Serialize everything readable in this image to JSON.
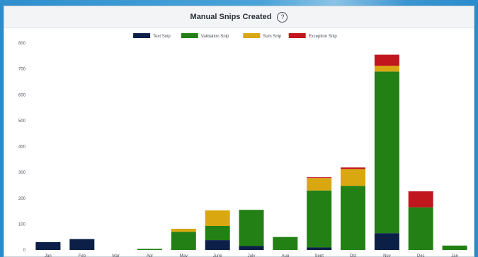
{
  "header": {
    "title": "Manual Snips Created",
    "help_glyph": "?"
  },
  "chart_data": {
    "type": "bar",
    "stacked": true,
    "categories": [
      "Jan",
      "Feb",
      "Mar",
      "Apr",
      "May",
      "June",
      "July",
      "Aug",
      "Sept",
      "Oct",
      "Nov",
      "Dec",
      "Jan"
    ],
    "series": [
      {
        "name": "Text Snip",
        "color": "#0b1f47",
        "values": [
          30,
          42,
          0,
          0,
          0,
          38,
          15,
          0,
          10,
          0,
          65,
          0,
          0
        ]
      },
      {
        "name": "Validation Snip",
        "color": "#238014",
        "values": [
          0,
          0,
          0,
          4,
          70,
          55,
          140,
          50,
          220,
          248,
          625,
          165,
          17
        ]
      },
      {
        "name": "Sum Snip",
        "color": "#d9a710",
        "values": [
          0,
          0,
          0,
          0,
          12,
          60,
          0,
          0,
          48,
          65,
          22,
          0,
          0
        ]
      },
      {
        "name": "Exception Snip",
        "color": "#c1161d",
        "values": [
          0,
          0,
          0,
          0,
          0,
          0,
          0,
          0,
          3,
          6,
          43,
          62,
          0
        ]
      }
    ],
    "ylim": [
      0,
      800
    ],
    "yticks": [
      0,
      100,
      200,
      300,
      400,
      500,
      600,
      700,
      800
    ],
    "grid": false,
    "legend": "top-center"
  }
}
